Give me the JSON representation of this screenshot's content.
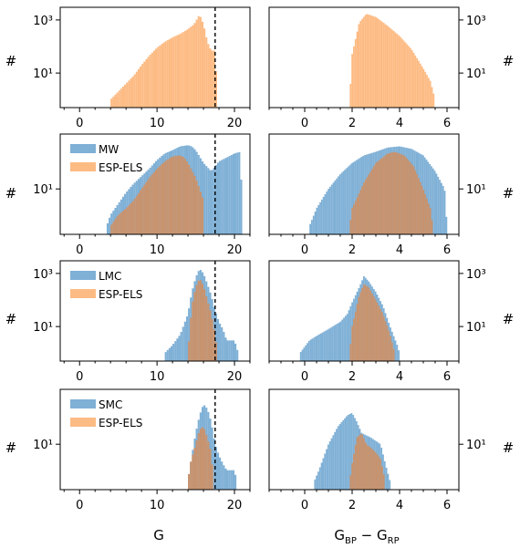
{
  "figure": {
    "xlabel_left": "G",
    "xlabel_right_main": "G",
    "xlabel_right_sub1": "BP",
    "xlabel_right_minus": " − G",
    "xlabel_right_sub2": "RP",
    "ylabel": "#",
    "colors": {
      "mw": "#7fb0d6",
      "esp": "#fdbb84",
      "esp_overlap": "#c8936e",
      "frame": "#000000",
      "dashed": "#000000"
    },
    "g_limit_marker": 17.5
  },
  "chart_data": [
    {
      "id": "r1-left",
      "type": "bar",
      "row": 0,
      "col": 0,
      "xlim": [
        -2.5,
        22
      ],
      "ylim": [
        0.5,
        3000
      ],
      "yscale": "log",
      "xticks": [
        "0",
        "10",
        "20"
      ],
      "yticks": [
        "10³",
        "10¹"
      ],
      "ytick_values": [
        1000,
        10
      ],
      "dashed_line_x": 17.5,
      "legend": [],
      "series": [
        {
          "name": "ESP-ELS",
          "color": "esp",
          "binwidth": 0.25,
          "points": [
            [
              4,
              1
            ],
            [
              5,
              2
            ],
            [
              6,
              4
            ],
            [
              7,
              8
            ],
            [
              8,
              20
            ],
            [
              9,
              45
            ],
            [
              10,
              90
            ],
            [
              11,
              150
            ],
            [
              12,
              220
            ],
            [
              13,
              300
            ],
            [
              14,
              450
            ],
            [
              14.8,
              700
            ],
            [
              15.5,
              1600
            ],
            [
              16,
              700
            ],
            [
              16.5,
              150
            ],
            [
              17,
              70
            ],
            [
              17.5,
              70
            ],
            [
              17.8,
              1
            ]
          ]
        }
      ]
    },
    {
      "id": "r1-right",
      "type": "bar",
      "row": 0,
      "col": 1,
      "xlim": [
        -1.5,
        6.5
      ],
      "ylim": [
        0.5,
        3000
      ],
      "yscale": "log",
      "xticks": [
        "0",
        "2",
        "4",
        "6"
      ],
      "yticks": [
        "10³",
        "10¹"
      ],
      "ytick_values": [
        1000,
        10
      ],
      "dashed_line_x": null,
      "legend": [],
      "series": [
        {
          "name": "ESP-ELS",
          "color": "esp",
          "binwidth": 0.07,
          "points": [
            [
              1.9,
              1
            ],
            [
              2.0,
              50
            ],
            [
              2.3,
              800
            ],
            [
              2.6,
              1700
            ],
            [
              3.0,
              1300
            ],
            [
              3.5,
              600
            ],
            [
              4.0,
              250
            ],
            [
              4.5,
              80
            ],
            [
              5.0,
              15
            ],
            [
              5.3,
              5
            ],
            [
              5.5,
              1
            ]
          ]
        }
      ]
    },
    {
      "id": "r2-left",
      "type": "bar",
      "row": 1,
      "col": 0,
      "xlim": [
        -2.5,
        22
      ],
      "ylim": [
        0.6,
        300
      ],
      "yscale": "log",
      "xticks": [
        "0",
        "10",
        "20"
      ],
      "yticks": [
        "10¹"
      ],
      "ytick_values": [
        10
      ],
      "dashed_line_x": 17.5,
      "legend": [
        "MW",
        "ESP-ELS"
      ],
      "series": [
        {
          "name": "MW",
          "color": "mw",
          "binwidth": 0.25,
          "points": [
            [
              3.5,
              1
            ],
            [
              4,
              2
            ],
            [
              5,
              4
            ],
            [
              6,
              8
            ],
            [
              7,
              14
            ],
            [
              8,
              22
            ],
            [
              9,
              35
            ],
            [
              10,
              60
            ],
            [
              11,
              90
            ],
            [
              12,
              110
            ],
            [
              13,
              140
            ],
            [
              14,
              150
            ],
            [
              14.5,
              140
            ],
            [
              15,
              110
            ],
            [
              16,
              50
            ],
            [
              17,
              30
            ],
            [
              18,
              55
            ],
            [
              19,
              70
            ],
            [
              20,
              90
            ],
            [
              20.8,
              100
            ],
            [
              21,
              1
            ]
          ]
        },
        {
          "name": "ESP-ELS",
          "color": "esp",
          "binwidth": 0.25,
          "points": [
            [
              4,
              1
            ],
            [
              5,
              2
            ],
            [
              6,
              3
            ],
            [
              7,
              5
            ],
            [
              8,
              10
            ],
            [
              9,
              20
            ],
            [
              10,
              35
            ],
            [
              11,
              55
            ],
            [
              12,
              75
            ],
            [
              13,
              80
            ],
            [
              13.5,
              70
            ],
            [
              14,
              50
            ],
            [
              15,
              20
            ],
            [
              16,
              5
            ],
            [
              16,
              1
            ]
          ]
        }
      ]
    },
    {
      "id": "r2-right",
      "type": "bar",
      "row": 1,
      "col": 1,
      "xlim": [
        -1.5,
        6.5
      ],
      "ylim": [
        0.6,
        300
      ],
      "yscale": "log",
      "xticks": [
        "0",
        "2",
        "4",
        "6"
      ],
      "yticks": [
        "10¹"
      ],
      "ytick_values": [
        10
      ],
      "dashed_line_x": null,
      "legend": [],
      "series": [
        {
          "name": "MW",
          "color": "mw",
          "binwidth": 0.07,
          "points": [
            [
              0.2,
              1
            ],
            [
              0.5,
              3
            ],
            [
              1.0,
              10
            ],
            [
              1.5,
              25
            ],
            [
              2.0,
              50
            ],
            [
              2.5,
              80
            ],
            [
              3.0,
              100
            ],
            [
              3.5,
              130
            ],
            [
              4.0,
              140
            ],
            [
              4.5,
              120
            ],
            [
              5.0,
              80
            ],
            [
              5.5,
              30
            ],
            [
              5.9,
              10
            ],
            [
              6.0,
              1
            ]
          ]
        },
        {
          "name": "ESP-ELS",
          "color": "esp",
          "binwidth": 0.07,
          "points": [
            [
              1.9,
              1
            ],
            [
              2.0,
              3
            ],
            [
              2.5,
              15
            ],
            [
              3.0,
              50
            ],
            [
              3.5,
              90
            ],
            [
              3.8,
              100
            ],
            [
              4.2,
              80
            ],
            [
              4.6,
              40
            ],
            [
              5.0,
              10
            ],
            [
              5.3,
              3
            ],
            [
              5.4,
              1
            ]
          ]
        }
      ]
    },
    {
      "id": "r3-left",
      "type": "bar",
      "row": 2,
      "col": 0,
      "xlim": [
        -2.5,
        22
      ],
      "ylim": [
        0.5,
        3000
      ],
      "yscale": "log",
      "xticks": [
        "0",
        "10",
        "20"
      ],
      "yticks": [
        "10³",
        "10¹"
      ],
      "ytick_values": [
        1000,
        10
      ],
      "dashed_line_x": 17.5,
      "legend": [
        "LMC",
        "ESP-ELS"
      ],
      "series": [
        {
          "name": "LMC",
          "color": "mw",
          "binwidth": 0.25,
          "points": [
            [
              11,
              1
            ],
            [
              12,
              2
            ],
            [
              13,
              5
            ],
            [
              14,
              30
            ],
            [
              14.5,
              200
            ],
            [
              15,
              700
            ],
            [
              15.5,
              1500
            ],
            [
              16,
              1000
            ],
            [
              16.5,
              400
            ],
            [
              17,
              150
            ],
            [
              17.5,
              40
            ],
            [
              18,
              15
            ],
            [
              18.5,
              8
            ],
            [
              19,
              3
            ],
            [
              20,
              3
            ],
            [
              20.5,
              1
            ]
          ]
        },
        {
          "name": "ESP-ELS",
          "color": "esp",
          "binwidth": 0.25,
          "points": [
            [
              14,
              1
            ],
            [
              14.5,
              60
            ],
            [
              15,
              300
            ],
            [
              15.5,
              650
            ],
            [
              16,
              350
            ],
            [
              16.5,
              100
            ],
            [
              17,
              30
            ],
            [
              17.5,
              5
            ],
            [
              17.8,
              1
            ]
          ]
        }
      ]
    },
    {
      "id": "r3-right",
      "type": "bar",
      "row": 2,
      "col": 1,
      "xlim": [
        -1.5,
        6.5
      ],
      "ylim": [
        0.5,
        3000
      ],
      "yscale": "log",
      "xticks": [
        "0",
        "2",
        "4",
        "6"
      ],
      "yticks": [
        "10³",
        "10¹"
      ],
      "ytick_values": [
        1000,
        10
      ],
      "dashed_line_x": null,
      "legend": [],
      "series": [
        {
          "name": "LMC",
          "color": "mw",
          "binwidth": 0.07,
          "points": [
            [
              -0.2,
              1
            ],
            [
              0.2,
              3
            ],
            [
              0.6,
              5
            ],
            [
              1.0,
              8
            ],
            [
              1.5,
              15
            ],
            [
              1.8,
              30
            ],
            [
              2.0,
              80
            ],
            [
              2.3,
              300
            ],
            [
              2.5,
              800
            ],
            [
              2.7,
              500
            ],
            [
              3.0,
              200
            ],
            [
              3.3,
              60
            ],
            [
              3.6,
              10
            ],
            [
              3.9,
              2
            ],
            [
              4.0,
              1
            ]
          ]
        },
        {
          "name": "ESP-ELS",
          "color": "esp",
          "binwidth": 0.07,
          "points": [
            [
              1.9,
              1
            ],
            [
              2.0,
              10
            ],
            [
              2.3,
              150
            ],
            [
              2.5,
              400
            ],
            [
              2.7,
              300
            ],
            [
              3.0,
              100
            ],
            [
              3.3,
              30
            ],
            [
              3.6,
              5
            ],
            [
              3.8,
              1
            ]
          ]
        }
      ]
    },
    {
      "id": "r4-left",
      "type": "bar",
      "row": 3,
      "col": 0,
      "xlim": [
        -2.5,
        22
      ],
      "ylim": [
        0.6,
        300
      ],
      "yscale": "log",
      "xticks": [
        "0",
        "10",
        "20"
      ],
      "yticks": [
        "10¹"
      ],
      "ytick_values": [
        10
      ],
      "dashed_line_x": 17.5,
      "legend": [
        "SMC",
        "ESP-ELS"
      ],
      "series": [
        {
          "name": "SMC",
          "color": "mw",
          "binwidth": 0.25,
          "points": [
            [
              14,
              1
            ],
            [
              14.5,
              5
            ],
            [
              15,
              20
            ],
            [
              15.5,
              60
            ],
            [
              16,
              120
            ],
            [
              16.5,
              90
            ],
            [
              17,
              40
            ],
            [
              17.5,
              10
            ],
            [
              18,
              5
            ],
            [
              18.5,
              3
            ],
            [
              19,
              2
            ],
            [
              20,
              2
            ],
            [
              20.3,
              1
            ]
          ]
        },
        {
          "name": "ESP-ELS",
          "color": "esp",
          "binwidth": 0.25,
          "points": [
            [
              14,
              1
            ],
            [
              14.3,
              3
            ],
            [
              15,
              10
            ],
            [
              15.5,
              25
            ],
            [
              16,
              30
            ],
            [
              16.5,
              15
            ],
            [
              17,
              6
            ],
            [
              17.3,
              1
            ]
          ]
        }
      ]
    },
    {
      "id": "r4-right",
      "type": "bar",
      "row": 3,
      "col": 1,
      "xlim": [
        -1.5,
        6.5
      ],
      "ylim": [
        0.6,
        300
      ],
      "yscale": "log",
      "xticks": [
        "0",
        "2",
        "4",
        "6"
      ],
      "yticks": [
        "10¹"
      ],
      "ytick_values": [
        10
      ],
      "dashed_line_x": null,
      "legend": [],
      "series": [
        {
          "name": "SMC",
          "color": "mw",
          "binwidth": 0.07,
          "points": [
            [
              0.4,
              1
            ],
            [
              0.6,
              2
            ],
            [
              1.0,
              10
            ],
            [
              1.4,
              30
            ],
            [
              1.8,
              60
            ],
            [
              2.0,
              70
            ],
            [
              2.2,
              40
            ],
            [
              2.4,
              20
            ],
            [
              2.8,
              15
            ],
            [
              3.2,
              10
            ],
            [
              3.4,
              3
            ],
            [
              3.6,
              1
            ]
          ]
        },
        {
          "name": "ESP-ELS",
          "color": "esp",
          "binwidth": 0.07,
          "points": [
            [
              1.9,
              1
            ],
            [
              2.0,
              3
            ],
            [
              2.2,
              15
            ],
            [
              2.4,
              20
            ],
            [
              2.6,
              10
            ],
            [
              2.8,
              8
            ],
            [
              3.0,
              6
            ],
            [
              3.2,
              4
            ],
            [
              3.4,
              1
            ]
          ]
        }
      ]
    }
  ]
}
